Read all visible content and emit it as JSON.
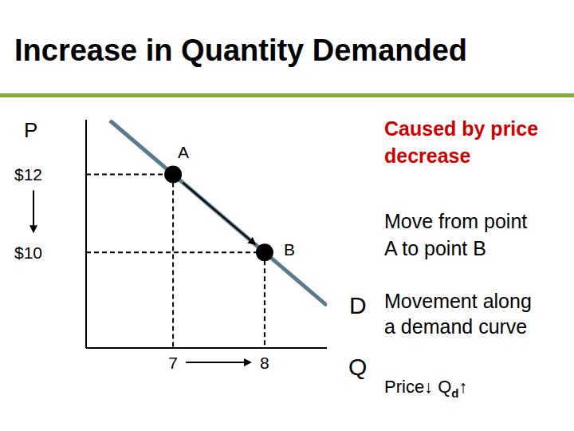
{
  "chart_data": {
    "type": "line",
    "title": "Increase in Quantity Demanded",
    "x_label": "Q",
    "y_label": "P",
    "x": [
      6.31,
      8.68
    ],
    "series": [
      {
        "name": "D",
        "color": "#5b7b8c",
        "values": [
          13.38,
          8.64
        ]
      }
    ],
    "points": [
      {
        "label": "A",
        "x": 7,
        "y": 12
      },
      {
        "label": "B",
        "x": 8,
        "y": 10
      }
    ],
    "xlim": [
      6.05,
      8.68
    ],
    "ylim": [
      7.55,
      13.4
    ],
    "xticks": [
      7,
      8
    ],
    "yticks": [
      {
        "value": 12,
        "label": "$12"
      },
      {
        "value": 10,
        "label": "$10"
      }
    ],
    "grid": false,
    "annotations": [
      {
        "lines": [
          "Caused by price",
          "decrease"
        ],
        "color": "#cc0000"
      },
      {
        "lines": [
          "Move from point",
          "A to point B"
        ]
      },
      {
        "lines": [
          "Movement along",
          "a demand curve"
        ]
      },
      {
        "text": "Price↓ Q",
        "sub": "d",
        "after": "↑"
      }
    ]
  }
}
